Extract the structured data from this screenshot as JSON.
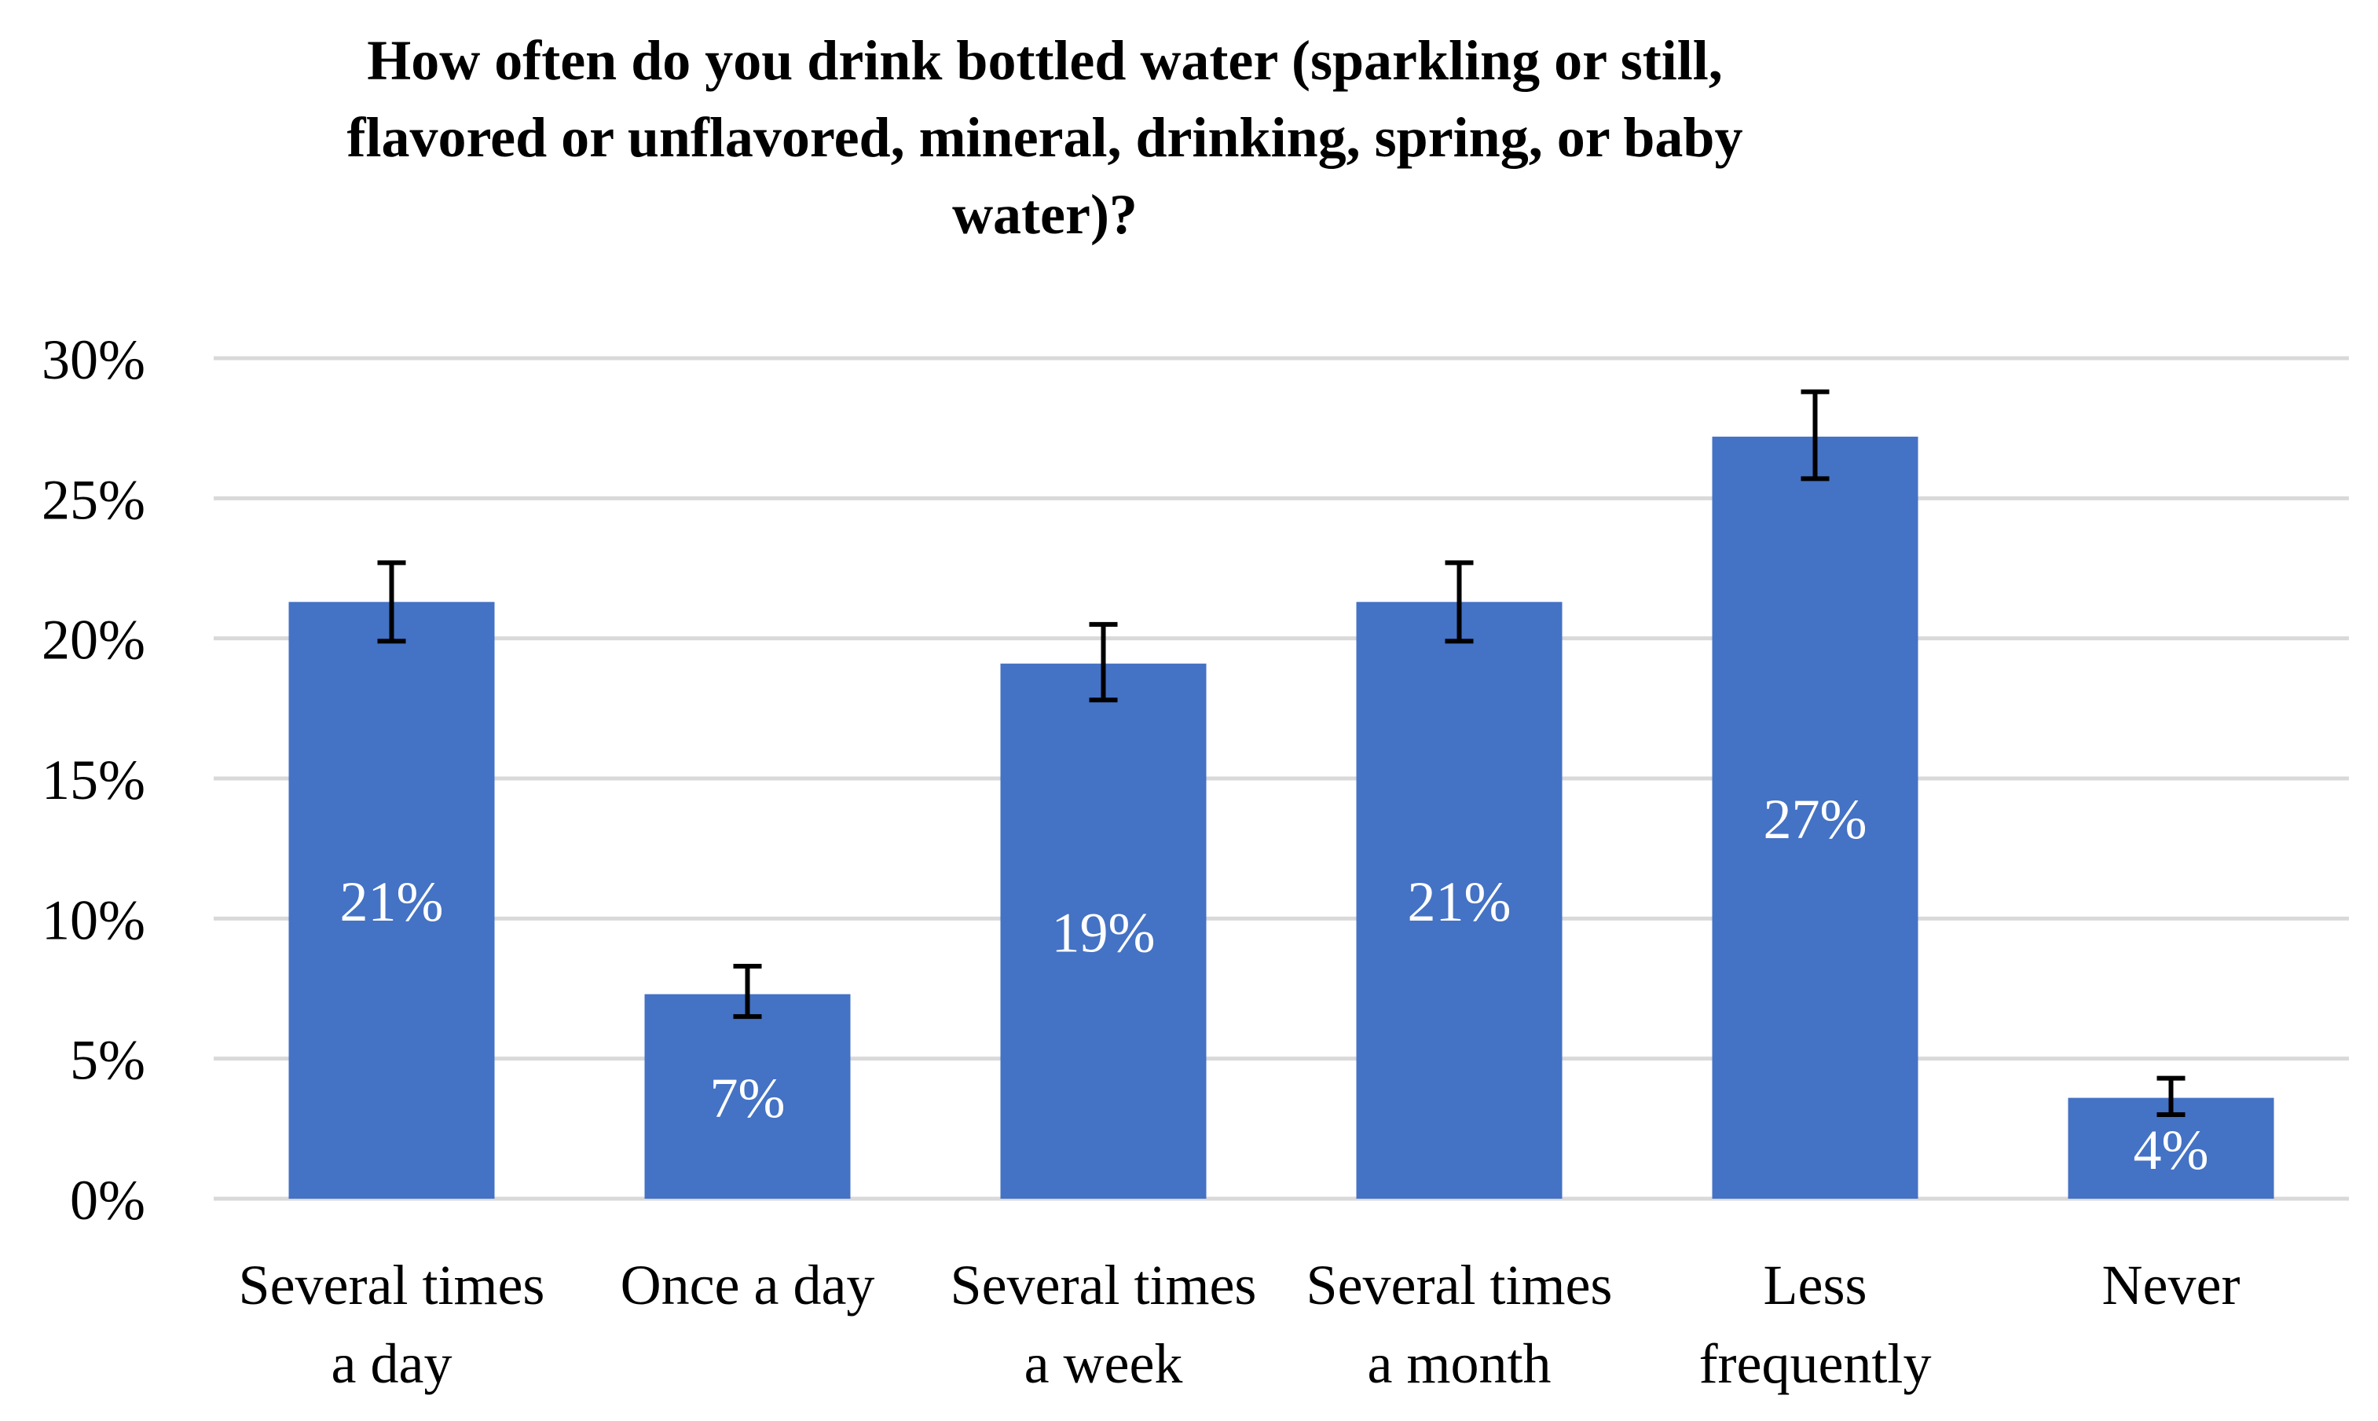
{
  "chart_data": {
    "type": "bar",
    "title_lines": [
      "How often do you drink bottled water (sparkling or still,",
      "flavored or unflavored, mineral, drinking, spring, or baby",
      "water)?"
    ],
    "categories": [
      [
        "Several times",
        "a day"
      ],
      [
        "Once a day"
      ],
      [
        "Several times",
        "a week"
      ],
      [
        "Several times",
        "a month"
      ],
      [
        "Less",
        "frequently"
      ],
      [
        "Never"
      ]
    ],
    "values": [
      21.3,
      7.3,
      19.1,
      21.3,
      27.2,
      3.6
    ],
    "data_labels": [
      "21%",
      "7%",
      "19%",
      "21%",
      "27%",
      "4%"
    ],
    "error_bars": [
      [
        19.9,
        22.7
      ],
      [
        6.5,
        8.3
      ],
      [
        17.8,
        20.5
      ],
      [
        19.9,
        22.7
      ],
      [
        25.7,
        28.8
      ],
      [
        3.0,
        4.3
      ]
    ],
    "ylim": [
      0,
      30
    ],
    "y_ticks": [
      0,
      5,
      10,
      15,
      20,
      25,
      30
    ],
    "y_tick_labels": [
      "0%",
      "5%",
      "10%",
      "15%",
      "20%",
      "25%",
      "30%"
    ],
    "xlabel": "",
    "ylabel": "",
    "grid": true,
    "legend": "none",
    "colors": {
      "bar": "#4472C4",
      "grid": "#D9D9D9",
      "error_bar": "#000000",
      "data_label": "#FFFFFF",
      "text": "#000000"
    }
  }
}
